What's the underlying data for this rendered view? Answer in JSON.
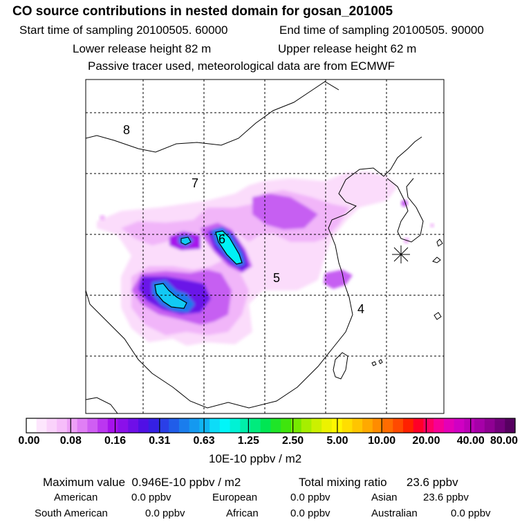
{
  "header": {
    "title": "CO  source contributions in nested domain for gosan_201005",
    "start_time": "Start time of sampling 20100505. 60000",
    "end_time": "End time of sampling 20100505. 90000",
    "lower_release": "Lower release height   82 m",
    "upper_release": "Upper release height   62 m",
    "note": "Passive tracer used, meteorological data are from ECMWF"
  },
  "map": {
    "region_labels": [
      "8",
      "7",
      "6",
      "5",
      "4"
    ],
    "receptor_symbol": "gosan-receptor"
  },
  "colorbar": {
    "tick_labels": [
      "0.00",
      "0.08",
      "0.16",
      "0.31",
      "0.63",
      "1.25",
      "2.50",
      "5.00",
      "10.00",
      "20.00",
      "40.00",
      "80.00"
    ],
    "units": "10E-10 ppbv / m2",
    "colors": [
      "#ffffff",
      "#fde6fd",
      "#fad2fb",
      "#f6bdfa",
      "#eda0f7",
      "#e07ff5",
      "#cf5ef3",
      "#bb36f0",
      "#a612ec",
      "#8b10ea",
      "#6f0fe8",
      "#5010e5",
      "#3520e4",
      "#2a3fe7",
      "#205de9",
      "#1a7ded",
      "#1499f0",
      "#10b5f3",
      "#0ddcf8",
      "#00f6f9",
      "#00f2d5",
      "#00eeaa",
      "#00eb7d",
      "#00e653",
      "#1fe528",
      "#3fe50d",
      "#76e900",
      "#a6ee00",
      "#ccf000",
      "#ecf200",
      "#fff700",
      "#ffde00",
      "#ffc500",
      "#ffa900",
      "#ff8c00",
      "#ff6c00",
      "#ff4a00",
      "#ff2100",
      "#ff0028",
      "#ff0063",
      "#f70095",
      "#e400b7",
      "#d000c3",
      "#bc00b8",
      "#a600a8",
      "#8f0093",
      "#73007c",
      "#560060"
    ]
  },
  "stats": {
    "max_label": "Maximum value",
    "max_value": "0.946E-10 ppbv / m2",
    "total_label": "Total mixing ratio",
    "total_value": "23.6 ppbv",
    "regions": [
      {
        "name": "American",
        "value": "0.0 ppbv"
      },
      {
        "name": "European",
        "value": "0.0 ppbv"
      },
      {
        "name": "Asian",
        "value": "23.6 ppbv"
      },
      {
        "name": "South American",
        "value": "0.0 ppbv"
      },
      {
        "name": "African",
        "value": "0.0 ppbv"
      },
      {
        "name": "Australian",
        "value": "0.0 ppbv"
      }
    ]
  }
}
